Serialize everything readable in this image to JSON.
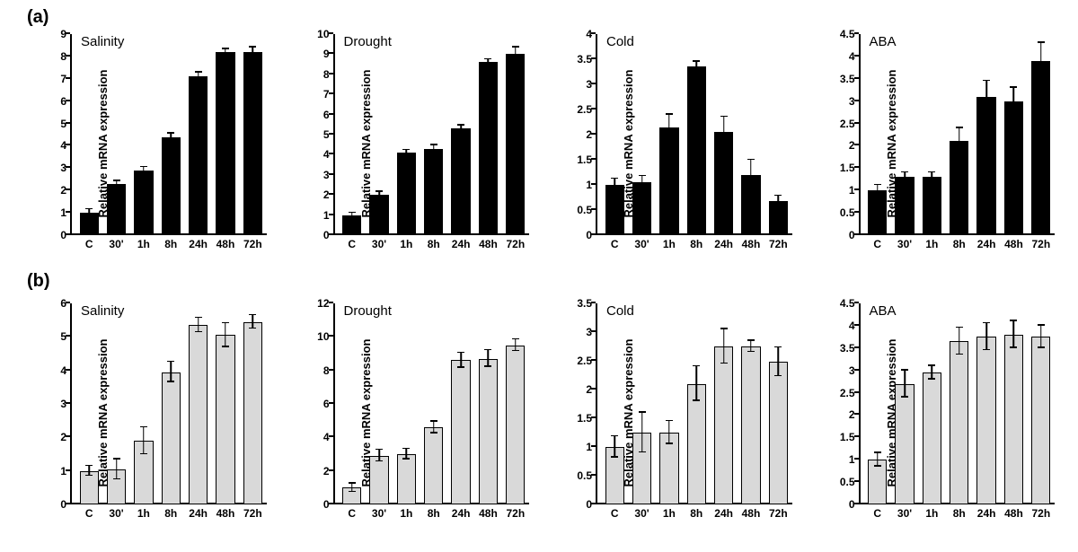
{
  "panel_labels": {
    "a": "(a)",
    "b": "(b)"
  },
  "ylabel": "Relative mRNA expression",
  "categories": [
    "C",
    "30'",
    "1h",
    "8h",
    "24h",
    "48h",
    "72h"
  ],
  "bar_border": "#000000",
  "err_cap_width": 8,
  "rows": {
    "a": {
      "top": 30,
      "bar_fill": "#000000",
      "charts": [
        {
          "title": "Salinity",
          "ylim": [
            0,
            9
          ],
          "ytick_step": 1,
          "values": [
            1.0,
            2.3,
            2.9,
            4.4,
            7.1,
            8.2,
            8.2
          ],
          "errors": [
            0.15,
            0.12,
            0.15,
            0.15,
            0.18,
            0.12,
            0.2
          ]
        },
        {
          "title": "Drought",
          "ylim": [
            0,
            10
          ],
          "ytick_step": 1,
          "values": [
            1.0,
            2.0,
            4.1,
            4.3,
            5.3,
            8.6,
            9.0
          ],
          "errors": [
            0.1,
            0.15,
            0.12,
            0.18,
            0.15,
            0.15,
            0.35
          ]
        },
        {
          "title": "Cold",
          "ylim": [
            0,
            4
          ],
          "ytick_step": 0.5,
          "values": [
            1.0,
            1.05,
            2.15,
            3.35,
            2.05,
            1.2,
            0.68
          ],
          "errors": [
            0.12,
            0.12,
            0.25,
            0.1,
            0.3,
            0.3,
            0.1
          ]
        },
        {
          "title": "ABA",
          "ylim": [
            0,
            4.5
          ],
          "ytick_step": 0.5,
          "values": [
            1.0,
            1.3,
            1.3,
            2.1,
            3.1,
            3.0,
            3.9
          ],
          "errors": [
            0.12,
            0.1,
            0.1,
            0.3,
            0.35,
            0.3,
            0.4
          ]
        }
      ]
    },
    "b": {
      "top": 330,
      "bar_fill": "#d9d9d9",
      "charts": [
        {
          "title": "Salinity",
          "ylim": [
            0,
            6
          ],
          "ytick_step": 1,
          "values": [
            1.0,
            1.05,
            1.9,
            3.95,
            5.35,
            5.05,
            5.45
          ],
          "errors": [
            0.15,
            0.3,
            0.4,
            0.3,
            0.22,
            0.35,
            0.2
          ]
        },
        {
          "title": "Drought",
          "ylim": [
            0,
            12
          ],
          "ytick_step": 2,
          "values": [
            1.0,
            2.9,
            3.0,
            4.6,
            8.6,
            8.7,
            9.5
          ],
          "errors": [
            0.25,
            0.35,
            0.3,
            0.35,
            0.45,
            0.5,
            0.35
          ]
        },
        {
          "title": "Cold",
          "ylim": [
            0,
            3.5
          ],
          "ytick_step": 0.5,
          "values": [
            1.0,
            1.25,
            1.25,
            2.1,
            2.75,
            2.75,
            2.48
          ],
          "errors": [
            0.18,
            0.35,
            0.2,
            0.3,
            0.3,
            0.1,
            0.25
          ]
        },
        {
          "title": "ABA",
          "ylim": [
            0,
            4.5
          ],
          "ytick_step": 0.5,
          "values": [
            1.0,
            2.7,
            2.95,
            3.65,
            3.75,
            3.8,
            3.75
          ],
          "errors": [
            0.15,
            0.3,
            0.15,
            0.3,
            0.3,
            0.3,
            0.25
          ]
        }
      ]
    }
  }
}
